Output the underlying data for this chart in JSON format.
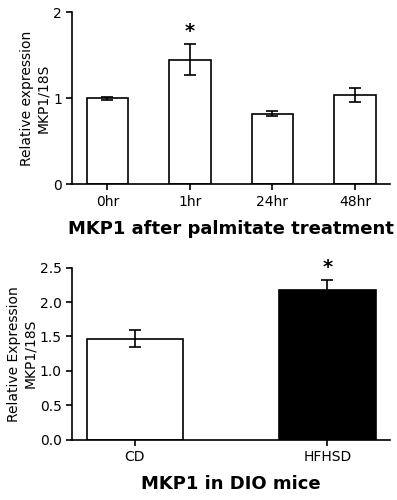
{
  "top_chart": {
    "categories": [
      "0hr",
      "1hr",
      "24hr",
      "48hr"
    ],
    "values": [
      1.0,
      1.45,
      0.82,
      1.04
    ],
    "errors": [
      0.02,
      0.18,
      0.03,
      0.08
    ],
    "bar_colors": [
      "#ffffff",
      "#ffffff",
      "#ffffff",
      "#ffffff"
    ],
    "bar_edgecolor": "#000000",
    "ylabel": "Relative expression\nMKP1/18S",
    "ylim": [
      0,
      2.0
    ],
    "yticks": [
      0,
      1,
      2
    ],
    "xlabel": "MKP1 after palmitate treatment",
    "significance": [
      1
    ],
    "sig_label": "*"
  },
  "bottom_chart": {
    "categories": [
      "CD",
      "HFHSD"
    ],
    "values": [
      1.47,
      2.17
    ],
    "errors": [
      0.13,
      0.15
    ],
    "bar_colors": [
      "#ffffff",
      "#000000"
    ],
    "bar_edgecolor": "#000000",
    "ylabel": "Relative Expression\nMKP1/18S",
    "ylim": [
      0,
      2.5
    ],
    "yticks": [
      0.0,
      0.5,
      1.0,
      1.5,
      2.0,
      2.5
    ],
    "xlabel": "MKP1 in DIO mice",
    "significance": [
      1
    ],
    "sig_label": "*"
  },
  "background_color": "#ffffff",
  "xlabel_fontsize": 13,
  "axis_fontsize": 10,
  "tick_fontsize": 10,
  "bar_width": 0.5
}
